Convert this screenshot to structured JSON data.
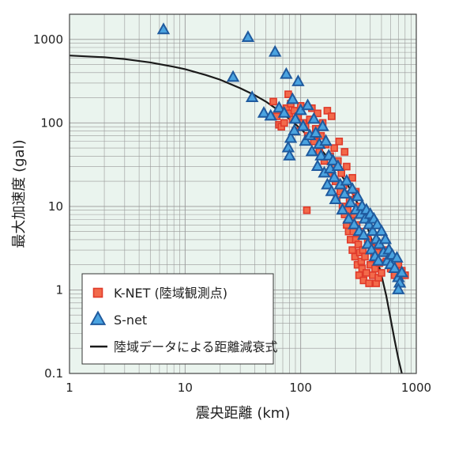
{
  "chart_data": {
    "type": "scatter",
    "xlabel": "震央距離 (km)",
    "ylabel": "最大加速度 (gal)",
    "xscale": "log",
    "yscale": "log",
    "xlim": [
      1,
      1000
    ],
    "ylim": [
      0.1,
      2000
    ],
    "x_ticks": [
      "1",
      "10",
      "100",
      "1000"
    ],
    "y_ticks": [
      "0.1",
      "1",
      "10",
      "100",
      "1000"
    ],
    "grid": true,
    "legend_position": "bottom-left",
    "colors": {
      "background": "#eaf4ee",
      "grid": "#999999",
      "knet_fill": "#f26a4b",
      "knet_stroke": "#e03a2a",
      "snet_fill": "#4aa3e0",
      "snet_stroke": "#1f5a9e",
      "curve": "#1a1a1a"
    },
    "series": [
      {
        "name": "K-NET (陸域観測点)",
        "marker": "square",
        "points": [
          [
            58,
            180
          ],
          [
            62,
            120
          ],
          [
            65,
            95
          ],
          [
            68,
            90
          ],
          [
            72,
            100
          ],
          [
            75,
            150
          ],
          [
            78,
            220
          ],
          [
            80,
            130
          ],
          [
            82,
            170
          ],
          [
            85,
            110
          ],
          [
            88,
            140
          ],
          [
            90,
            80
          ],
          [
            95,
            120
          ],
          [
            100,
            160
          ],
          [
            105,
            100
          ],
          [
            110,
            90
          ],
          [
            113,
            9
          ],
          [
            115,
            70
          ],
          [
            120,
            110
          ],
          [
            125,
            150
          ],
          [
            130,
            60
          ],
          [
            135,
            85
          ],
          [
            140,
            130
          ],
          [
            145,
            45
          ],
          [
            150,
            70
          ],
          [
            155,
            100
          ],
          [
            160,
            35
          ],
          [
            165,
            55
          ],
          [
            170,
            140
          ],
          [
            175,
            25
          ],
          [
            180,
            40
          ],
          [
            185,
            120
          ],
          [
            190,
            30
          ],
          [
            195,
            50
          ],
          [
            200,
            20
          ],
          [
            205,
            12
          ],
          [
            210,
            35
          ],
          [
            215,
            60
          ],
          [
            220,
            15
          ],
          [
            225,
            25
          ],
          [
            230,
            10
          ],
          [
            235,
            18
          ],
          [
            240,
            8
          ],
          [
            245,
            14
          ],
          [
            250,
            6
          ],
          [
            255,
            9
          ],
          [
            260,
            5
          ],
          [
            265,
            12
          ],
          [
            270,
            4
          ],
          [
            275,
            7
          ],
          [
            280,
            3
          ],
          [
            285,
            5
          ],
          [
            290,
            8
          ],
          [
            295,
            2.5
          ],
          [
            300,
            4
          ],
          [
            305,
            6
          ],
          [
            310,
            2
          ],
          [
            315,
            3.5
          ],
          [
            320,
            1.5
          ],
          [
            325,
            2.8
          ],
          [
            330,
            5
          ],
          [
            335,
            2.2
          ],
          [
            340,
            1.8
          ],
          [
            345,
            3
          ],
          [
            350,
            1.3
          ],
          [
            360,
            2.5
          ],
          [
            370,
            1.6
          ],
          [
            380,
            4
          ],
          [
            390,
            1.2
          ],
          [
            400,
            2
          ],
          [
            410,
            3.2
          ],
          [
            420,
            1.5
          ],
          [
            430,
            2.4
          ],
          [
            440,
            1.8
          ],
          [
            450,
            1.2
          ],
          [
            460,
            2.8
          ],
          [
            470,
            1.4
          ],
          [
            480,
            2.1
          ],
          [
            500,
            1.6
          ],
          [
            520,
            3
          ],
          [
            550,
            2.2
          ],
          [
            600,
            1.8
          ],
          [
            650,
            1.5
          ],
          [
            700,
            2
          ],
          [
            750,
            1.7
          ],
          [
            800,
            1.5
          ],
          [
            250,
            30
          ],
          [
            280,
            22
          ],
          [
            300,
            15
          ],
          [
            320,
            10
          ],
          [
            240,
            45
          ]
        ]
      },
      {
        "name": "S-net",
        "marker": "triangle",
        "points": [
          [
            6.5,
            1300
          ],
          [
            26,
            350
          ],
          [
            35,
            1050
          ],
          [
            38,
            200
          ],
          [
            48,
            130
          ],
          [
            55,
            120
          ],
          [
            60,
            700
          ],
          [
            65,
            150
          ],
          [
            72,
            130
          ],
          [
            75,
            380
          ],
          [
            78,
            50
          ],
          [
            80,
            40
          ],
          [
            82,
            65
          ],
          [
            85,
            190
          ],
          [
            88,
            80
          ],
          [
            90,
            110
          ],
          [
            95,
            310
          ],
          [
            100,
            140
          ],
          [
            105,
            90
          ],
          [
            110,
            60
          ],
          [
            115,
            160
          ],
          [
            120,
            70
          ],
          [
            125,
            45
          ],
          [
            130,
            110
          ],
          [
            135,
            75
          ],
          [
            140,
            30
          ],
          [
            145,
            55
          ],
          [
            150,
            40
          ],
          [
            155,
            90
          ],
          [
            160,
            25
          ],
          [
            165,
            60
          ],
          [
            170,
            18
          ],
          [
            175,
            40
          ],
          [
            180,
            28
          ],
          [
            185,
            15
          ],
          [
            190,
            35
          ],
          [
            195,
            22
          ],
          [
            200,
            12
          ],
          [
            210,
            30
          ],
          [
            220,
            18
          ],
          [
            230,
            9
          ],
          [
            240,
            14
          ],
          [
            250,
            20
          ],
          [
            260,
            7
          ],
          [
            270,
            11
          ],
          [
            280,
            16
          ],
          [
            290,
            6
          ],
          [
            300,
            9
          ],
          [
            310,
            13
          ],
          [
            320,
            5
          ],
          [
            330,
            8
          ],
          [
            340,
            10
          ],
          [
            350,
            4.5
          ],
          [
            360,
            7
          ],
          [
            370,
            9
          ],
          [
            380,
            3.5
          ],
          [
            390,
            6
          ],
          [
            400,
            8
          ],
          [
            410,
            3
          ],
          [
            420,
            5
          ],
          [
            430,
            7
          ],
          [
            440,
            2.5
          ],
          [
            450,
            4
          ],
          [
            460,
            6
          ],
          [
            470,
            2.2
          ],
          [
            480,
            3.5
          ],
          [
            500,
            5
          ],
          [
            520,
            2.8
          ],
          [
            540,
            4
          ],
          [
            560,
            2.2
          ],
          [
            580,
            3
          ],
          [
            600,
            2
          ],
          [
            620,
            2.6
          ],
          [
            650,
            1.8
          ],
          [
            680,
            2.4
          ],
          [
            700,
            1.4
          ],
          [
            720,
            1.2
          ],
          [
            750,
            1.6
          ],
          [
            700,
            1.0
          ]
        ]
      },
      {
        "name": "陸域データによる距離減衰式",
        "marker": "line",
        "points": [
          [
            1,
            640
          ],
          [
            2,
            610
          ],
          [
            3,
            580
          ],
          [
            5,
            530
          ],
          [
            8,
            470
          ],
          [
            10,
            440
          ],
          [
            15,
            375
          ],
          [
            20,
            330
          ],
          [
            30,
            260
          ],
          [
            40,
            215
          ],
          [
            50,
            180
          ],
          [
            70,
            130
          ],
          [
            100,
            85
          ],
          [
            150,
            48
          ],
          [
            200,
            30
          ],
          [
            250,
            19
          ],
          [
            300,
            12
          ],
          [
            350,
            7.5
          ],
          [
            400,
            4.5
          ],
          [
            450,
            2.6
          ],
          [
            500,
            1.5
          ],
          [
            550,
            0.85
          ],
          [
            600,
            0.45
          ],
          [
            650,
            0.25
          ],
          [
            700,
            0.15
          ],
          [
            750,
            0.1
          ]
        ]
      }
    ]
  }
}
